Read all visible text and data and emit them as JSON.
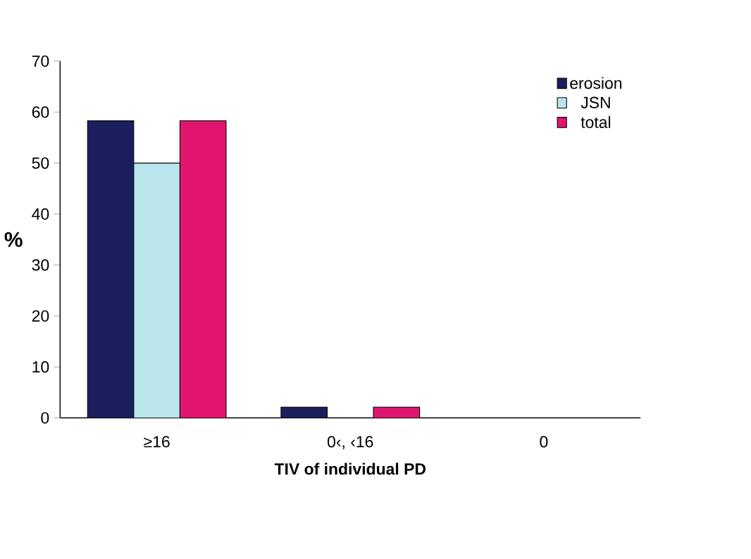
{
  "chart_data": {
    "type": "bar",
    "xlabel": "TIV of individual PD",
    "ylabel": "%",
    "categories": [
      "≥16",
      "0‹, ‹16",
      "0"
    ],
    "series": [
      {
        "name": "erosion",
        "color": "#1b1f5e",
        "values": [
          58.3,
          2.1,
          0
        ]
      },
      {
        "name": "JSN",
        "color": "#b8e6ec",
        "values": [
          50,
          0,
          0
        ]
      },
      {
        "name": "total",
        "color": "#e0156e",
        "values": [
          58.3,
          2.1,
          0
        ]
      }
    ],
    "ylim": [
      0,
      70
    ],
    "yticks": [
      0,
      10,
      20,
      30,
      40,
      50,
      60,
      70
    ],
    "legend": "top right"
  }
}
